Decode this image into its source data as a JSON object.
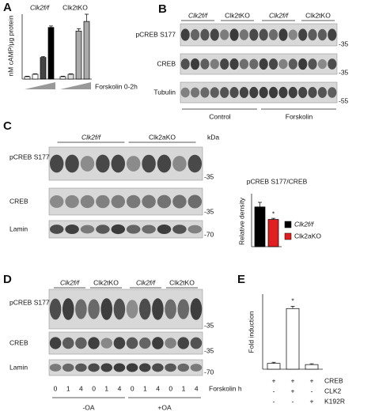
{
  "panels": {
    "a": "A",
    "b": "B",
    "c": "C",
    "d": "D",
    "e": "E"
  },
  "blot_b": {
    "groups": [
      "Clk2f/f",
      "Clk2tKO",
      "Clk2f/f",
      "Clk2tKO"
    ],
    "rows": [
      "pCREB S177",
      "CREB",
      "Tubulin"
    ],
    "markers": [
      "-35",
      "-35",
      "-55"
    ],
    "conditions": [
      "Control",
      "Forskolin"
    ]
  },
  "blot_c": {
    "groups": [
      "Clk2f/f",
      "Clk2aKO"
    ],
    "unit": "kDa",
    "rows": [
      "pCREB S177",
      "CREB",
      "Lamin"
    ],
    "markers": [
      "-35",
      "-35",
      "-70"
    ]
  },
  "blot_d": {
    "groups": [
      "Clk2f/f",
      "Clk2tKO",
      "Clk2f/f",
      "Clk2tKO"
    ],
    "rows": [
      "pCREB S177",
      "CREB",
      "Lamin"
    ],
    "markers": [
      "-35",
      "-35",
      "-70"
    ],
    "lanes": [
      "0",
      "1",
      "4",
      "0",
      "1",
      "4",
      "0",
      "1",
      "4",
      "0",
      "1",
      "4"
    ],
    "lane_title": "Forskolin h",
    "conditions": [
      "-OA",
      "+OA"
    ]
  },
  "chart_data": [
    {
      "type": "bar",
      "y_label": "nM cAMP/μg protein",
      "x_label": "Forskolin 0-2h",
      "group_labels": [
        "Clk2f/f",
        "Clk2tKO"
      ],
      "categories": [
        null,
        null,
        null,
        null,
        null,
        null,
        null,
        null
      ],
      "values": [
        1,
        2,
        9,
        21.5,
        1,
        2,
        20,
        24
      ],
      "errors": [
        0.2,
        0.2,
        0.4,
        0.6,
        0.2,
        0.2,
        1,
        3
      ],
      "colors": [
        "#ffffff",
        "#ffffff",
        "#444444",
        "#000000",
        "#ffffff",
        "#dddddd",
        "#aaaaaa",
        "#aaaaaa"
      ],
      "ylim": [
        0,
        27
      ]
    },
    {
      "type": "bar",
      "title": "pCREB S177/CREB",
      "y_label": "Relative density",
      "annotation": "*",
      "series": [
        {
          "name": "Clk2f/f",
          "color": "#000000",
          "values": [
            1.05
          ],
          "errors": [
            0.12
          ]
        },
        {
          "name": "Clk2aKO",
          "color": "#e02020",
          "values": [
            0.72
          ],
          "errors": [
            0.03
          ]
        }
      ],
      "ylim": [
        0,
        1.4
      ]
    },
    {
      "type": "bar",
      "y_label": "Fold induction",
      "annotation": "*",
      "categories": [
        null,
        null,
        null
      ],
      "values": [
        1,
        10.5,
        0.8
      ],
      "errors": [
        0.2,
        0.4,
        0.15
      ],
      "color": "#ffffff",
      "ylim": [
        0,
        13
      ],
      "table": [
        {
          "label": "CREB",
          "cells": [
            "+",
            "+",
            "+"
          ]
        },
        {
          "label": "CLK2",
          "cells": [
            "-",
            "+",
            "-"
          ]
        },
        {
          "label": "K192R",
          "cells": [
            "-",
            "-",
            "+"
          ]
        }
      ]
    }
  ]
}
